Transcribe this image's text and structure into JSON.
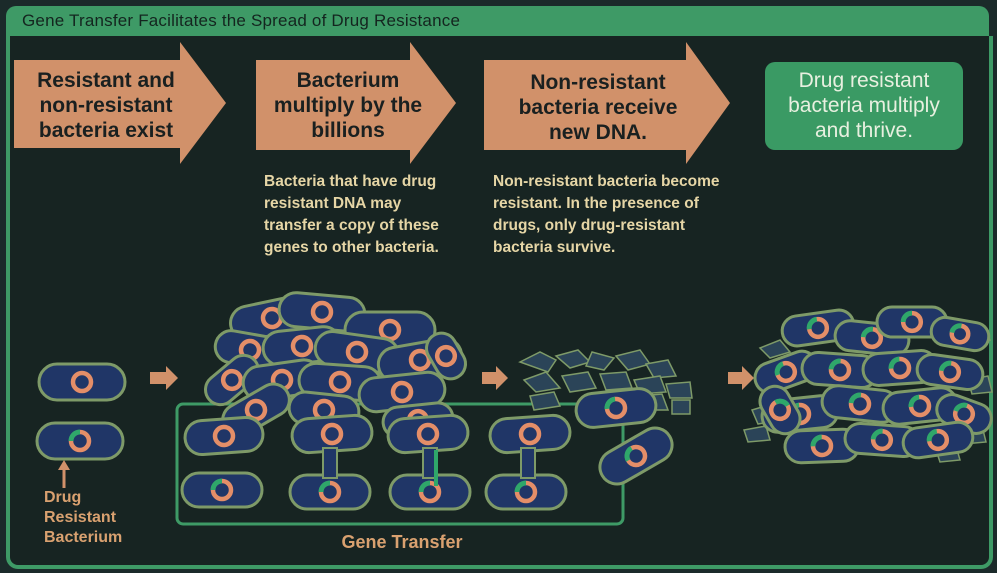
{
  "title": "Gene Transfer Facilitates the Spread of Drug Resistance",
  "steps": [
    {
      "text": "Resistant and non-resistant bacteria exist"
    },
    {
      "text": "Bacterium multiply by the billions"
    },
    {
      "text": "Non-resistant bacteria receive new DNA."
    },
    {
      "text": "Drug resistant bacteria multiply and thrive."
    }
  ],
  "descriptions": {
    "step2": "Bacteria that have drug resistant DNA may transfer a copy of these genes to other bacteria.",
    "step3": "Non-resistant bacteria become resistant. In the presence of drugs, only drug-resistant bacteria survive."
  },
  "labels": {
    "resistant_bacterium": "Drug Resistant Bacterium",
    "gene_transfer": "Gene Transfer"
  },
  "colors": {
    "arrow_fill": "#d1916a",
    "final_box": "#3a9a64",
    "bacterium_fill": "#203667",
    "bacterium_border": "#7e9a68",
    "dna_ring": "#e48e68",
    "resistance_gene": "#2fa76a",
    "description_text": "#e6d6a6",
    "label_text": "#d9a170"
  }
}
